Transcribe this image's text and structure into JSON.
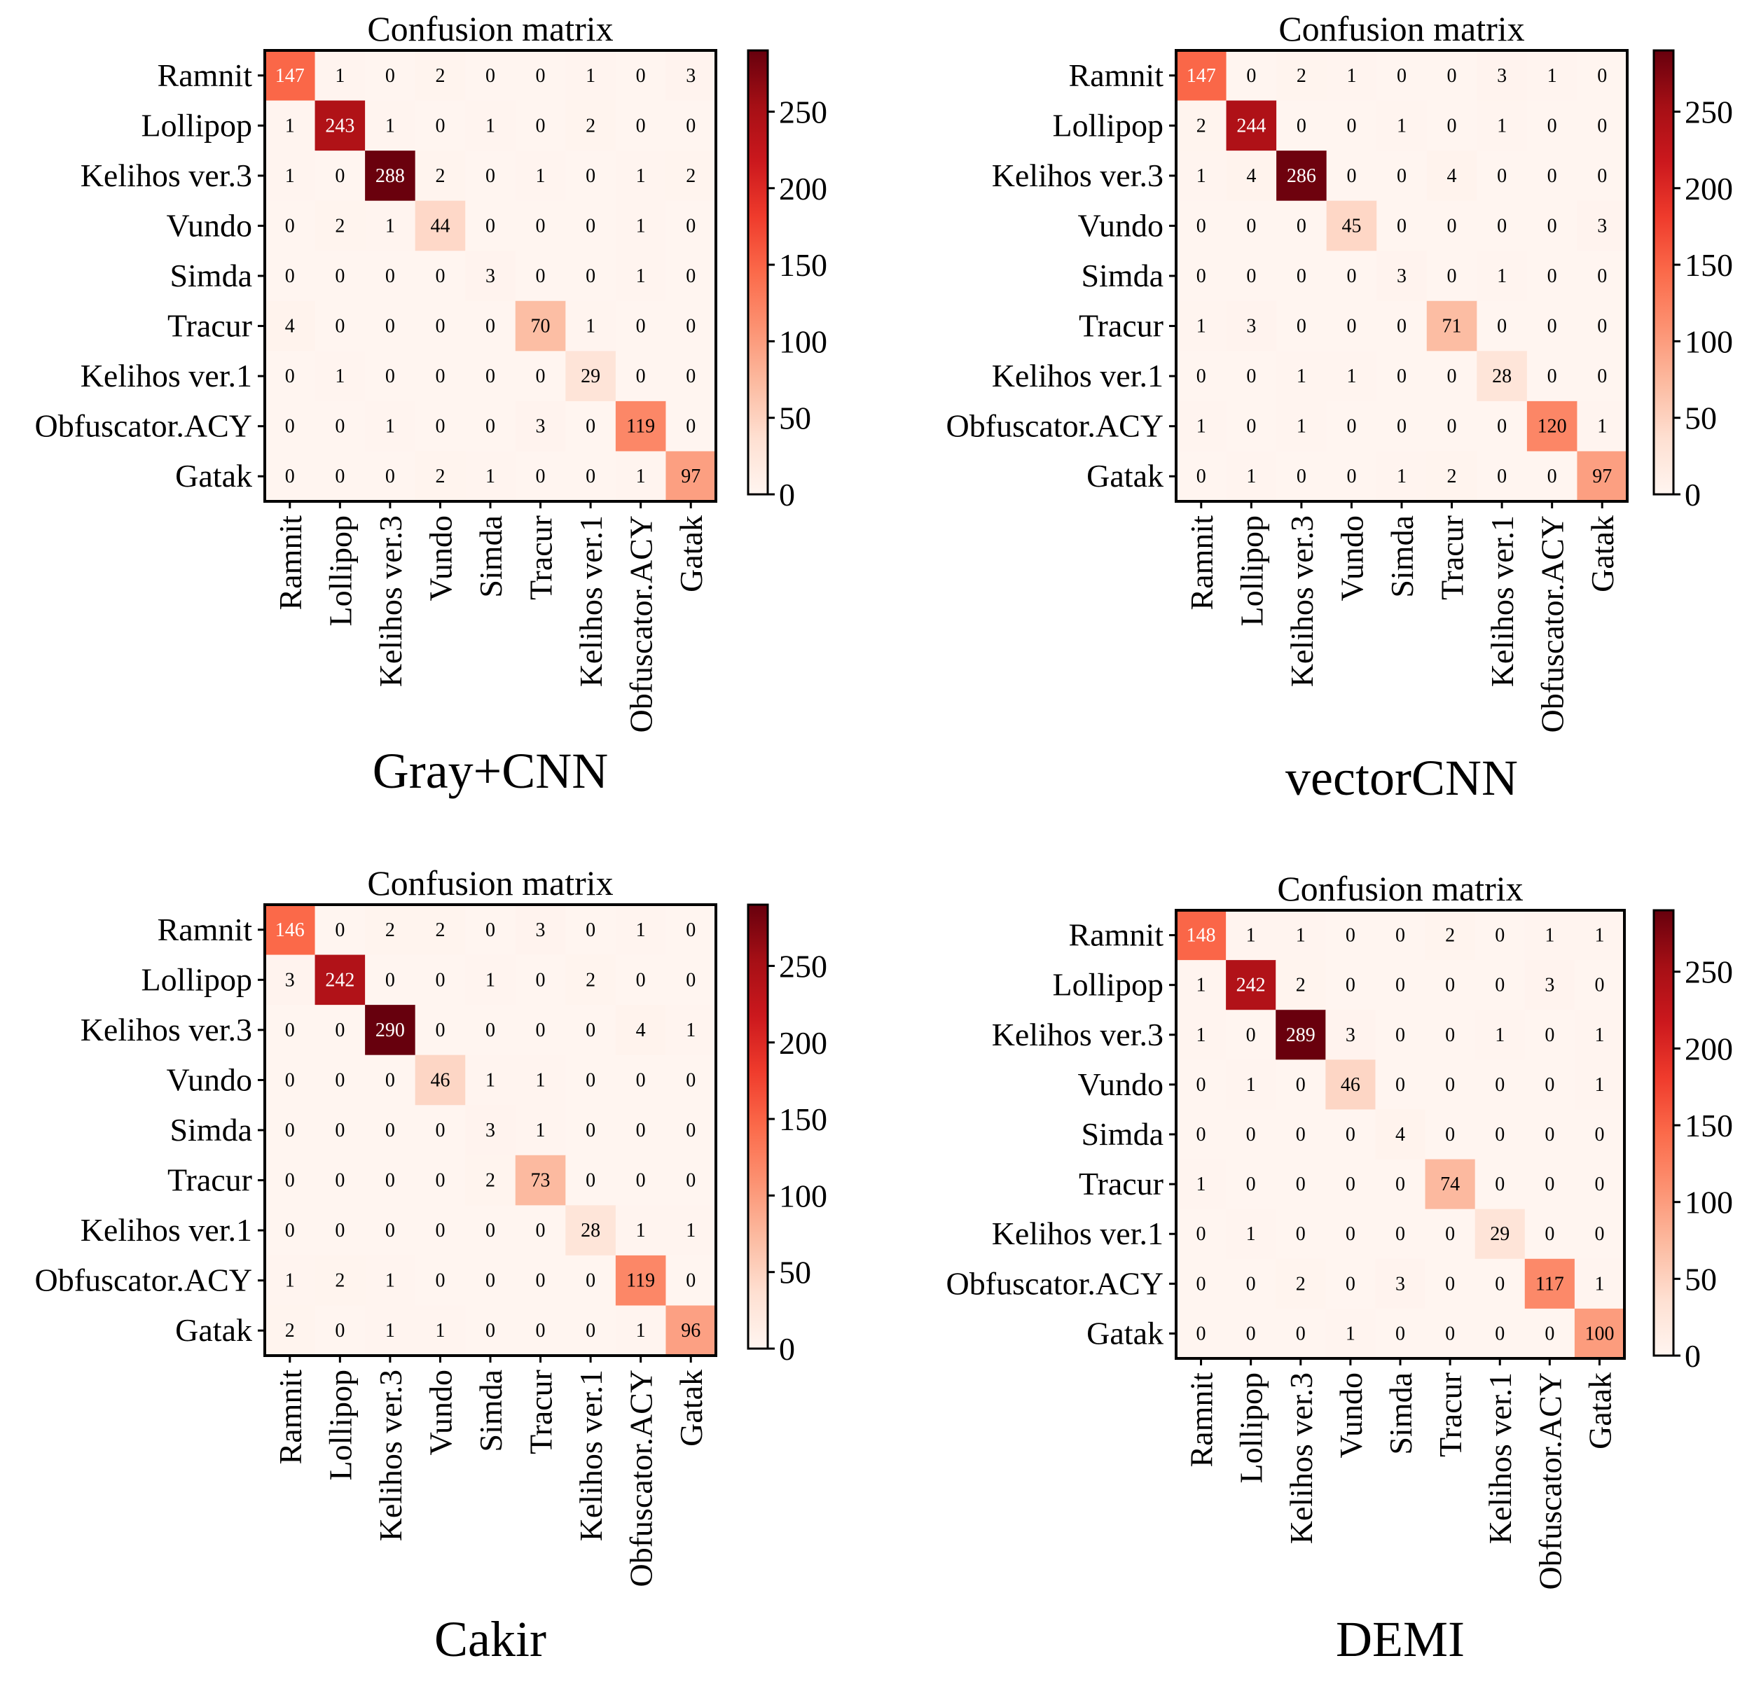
{
  "colorbar": {
    "ticks": [
      0,
      50,
      100,
      150,
      200,
      250
    ],
    "max": 290,
    "colormap": "Reds",
    "stops": [
      "#fff5f0",
      "#fee0d2",
      "#fcbba1",
      "#fc9272",
      "#fb6a4a",
      "#ef3b2c",
      "#cb181d",
      "#a50f15",
      "#67000d"
    ]
  },
  "chart_data": [
    {
      "type": "heatmap",
      "title": "Confusion matrix",
      "caption": "Gray+CNN",
      "row_labels": [
        "Ramnit",
        "Lollipop",
        "Kelihos ver.3",
        "Vundo",
        "Simda",
        "Tracur",
        "Kelihos ver.1",
        "Obfuscator.ACY",
        "Gatak"
      ],
      "col_labels": [
        "Ramnit",
        "Lollipop",
        "Kelihos ver.3",
        "Vundo",
        "Simda",
        "Tracur",
        "Kelihos ver.1",
        "Obfuscator.ACY",
        "Gatak"
      ],
      "values": [
        [
          147,
          1,
          0,
          2,
          0,
          0,
          1,
          0,
          3
        ],
        [
          1,
          243,
          1,
          0,
          1,
          0,
          2,
          0,
          0
        ],
        [
          1,
          0,
          288,
          2,
          0,
          1,
          0,
          1,
          2
        ],
        [
          0,
          2,
          1,
          44,
          0,
          0,
          0,
          1,
          0
        ],
        [
          0,
          0,
          0,
          0,
          3,
          0,
          0,
          1,
          0
        ],
        [
          4,
          0,
          0,
          0,
          0,
          70,
          1,
          0,
          0
        ],
        [
          0,
          1,
          0,
          0,
          0,
          0,
          29,
          0,
          0
        ],
        [
          0,
          0,
          1,
          0,
          0,
          3,
          0,
          119,
          0
        ],
        [
          0,
          0,
          0,
          2,
          1,
          0,
          0,
          1,
          97
        ]
      ]
    },
    {
      "type": "heatmap",
      "title": "Confusion matrix",
      "caption": "vectorCNN",
      "row_labels": [
        "Ramnit",
        "Lollipop",
        "Kelihos ver.3",
        "Vundo",
        "Simda",
        "Tracur",
        "Kelihos ver.1",
        "Obfuscator.ACY",
        "Gatak"
      ],
      "col_labels": [
        "Ramnit",
        "Lollipop",
        "Kelihos ver.3",
        "Vundo",
        "Simda",
        "Tracur",
        "Kelihos ver.1",
        "Obfuscator.ACY",
        "Gatak"
      ],
      "values": [
        [
          147,
          0,
          2,
          1,
          0,
          0,
          3,
          1,
          0
        ],
        [
          2,
          244,
          0,
          0,
          1,
          0,
          1,
          0,
          0
        ],
        [
          1,
          4,
          286,
          0,
          0,
          4,
          0,
          0,
          0
        ],
        [
          0,
          0,
          0,
          45,
          0,
          0,
          0,
          0,
          3
        ],
        [
          0,
          0,
          0,
          0,
          3,
          0,
          1,
          0,
          0
        ],
        [
          1,
          3,
          0,
          0,
          0,
          71,
          0,
          0,
          0
        ],
        [
          0,
          0,
          1,
          1,
          0,
          0,
          28,
          0,
          0
        ],
        [
          1,
          0,
          1,
          0,
          0,
          0,
          0,
          120,
          1
        ],
        [
          0,
          1,
          0,
          0,
          1,
          2,
          0,
          0,
          97
        ]
      ]
    },
    {
      "type": "heatmap",
      "title": "Confusion matrix",
      "caption": "Cakir",
      "row_labels": [
        "Ramnit",
        "Lollipop",
        "Kelihos ver.3",
        "Vundo",
        "Simda",
        "Tracur",
        "Kelihos ver.1",
        "Obfuscator.ACY",
        "Gatak"
      ],
      "col_labels": [
        "Ramnit",
        "Lollipop",
        "Kelihos ver.3",
        "Vundo",
        "Simda",
        "Tracur",
        "Kelihos ver.1",
        "Obfuscator.ACY",
        "Gatak"
      ],
      "values": [
        [
          146,
          0,
          2,
          2,
          0,
          3,
          0,
          1,
          0
        ],
        [
          3,
          242,
          0,
          0,
          1,
          0,
          2,
          0,
          0
        ],
        [
          0,
          0,
          290,
          0,
          0,
          0,
          0,
          4,
          1
        ],
        [
          0,
          0,
          0,
          46,
          1,
          1,
          0,
          0,
          0
        ],
        [
          0,
          0,
          0,
          0,
          3,
          1,
          0,
          0,
          0
        ],
        [
          0,
          0,
          0,
          0,
          2,
          73,
          0,
          0,
          0
        ],
        [
          0,
          0,
          0,
          0,
          0,
          0,
          28,
          1,
          1
        ],
        [
          1,
          2,
          1,
          0,
          0,
          0,
          0,
          119,
          0
        ],
        [
          2,
          0,
          1,
          1,
          0,
          0,
          0,
          1,
          96
        ]
      ]
    },
    {
      "type": "heatmap",
      "title": "Confusion matrix",
      "caption": "DEMI",
      "row_labels": [
        "Ramnit",
        "Lollipop",
        "Kelihos ver.3",
        "Vundo",
        "Simda",
        "Tracur",
        "Kelihos ver.1",
        "Obfuscator.ACY",
        "Gatak"
      ],
      "col_labels": [
        "Ramnit",
        "Lollipop",
        "Kelihos ver.3",
        "Vundo",
        "Simda",
        "Tracur",
        "Kelihos ver.1",
        "Obfuscator.ACY",
        "Gatak"
      ],
      "values": [
        [
          148,
          1,
          1,
          0,
          0,
          2,
          0,
          1,
          1
        ],
        [
          1,
          242,
          2,
          0,
          0,
          0,
          0,
          3,
          0
        ],
        [
          1,
          0,
          289,
          3,
          0,
          0,
          1,
          0,
          1
        ],
        [
          0,
          1,
          0,
          46,
          0,
          0,
          0,
          0,
          1
        ],
        [
          0,
          0,
          0,
          0,
          4,
          0,
          0,
          0,
          0
        ],
        [
          1,
          0,
          0,
          0,
          0,
          74,
          0,
          0,
          0
        ],
        [
          0,
          1,
          0,
          0,
          0,
          0,
          29,
          0,
          0
        ],
        [
          0,
          0,
          2,
          0,
          3,
          0,
          0,
          117,
          1
        ],
        [
          0,
          0,
          0,
          1,
          0,
          0,
          0,
          0,
          100
        ]
      ]
    }
  ]
}
